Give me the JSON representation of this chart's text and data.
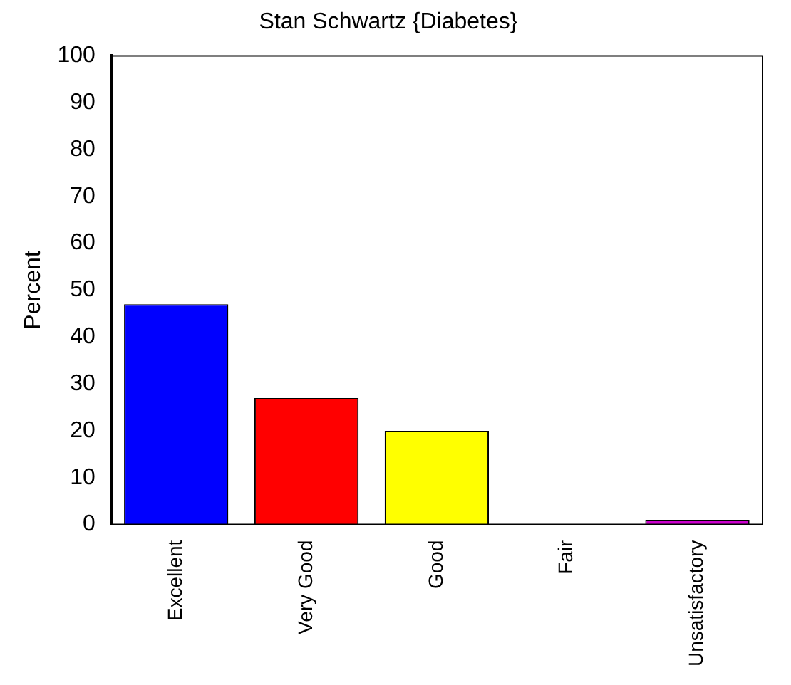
{
  "chart_data": {
    "type": "bar",
    "title": "Stan Schwartz {Diabetes}",
    "ylabel": "Percent",
    "categories": [
      "Excellent",
      "Very Good",
      "Good",
      "Fair",
      "Unsatisfactory"
    ],
    "values": [
      47,
      27,
      20,
      0,
      1
    ],
    "colors": [
      "#0000ff",
      "#ff0000",
      "#ffff00",
      "#00cc00",
      "#cc00cc"
    ],
    "ylim": [
      0,
      100
    ],
    "yticks": [
      0,
      10,
      20,
      30,
      40,
      50,
      60,
      70,
      80,
      90,
      100
    ],
    "grid": false,
    "legend": false
  }
}
